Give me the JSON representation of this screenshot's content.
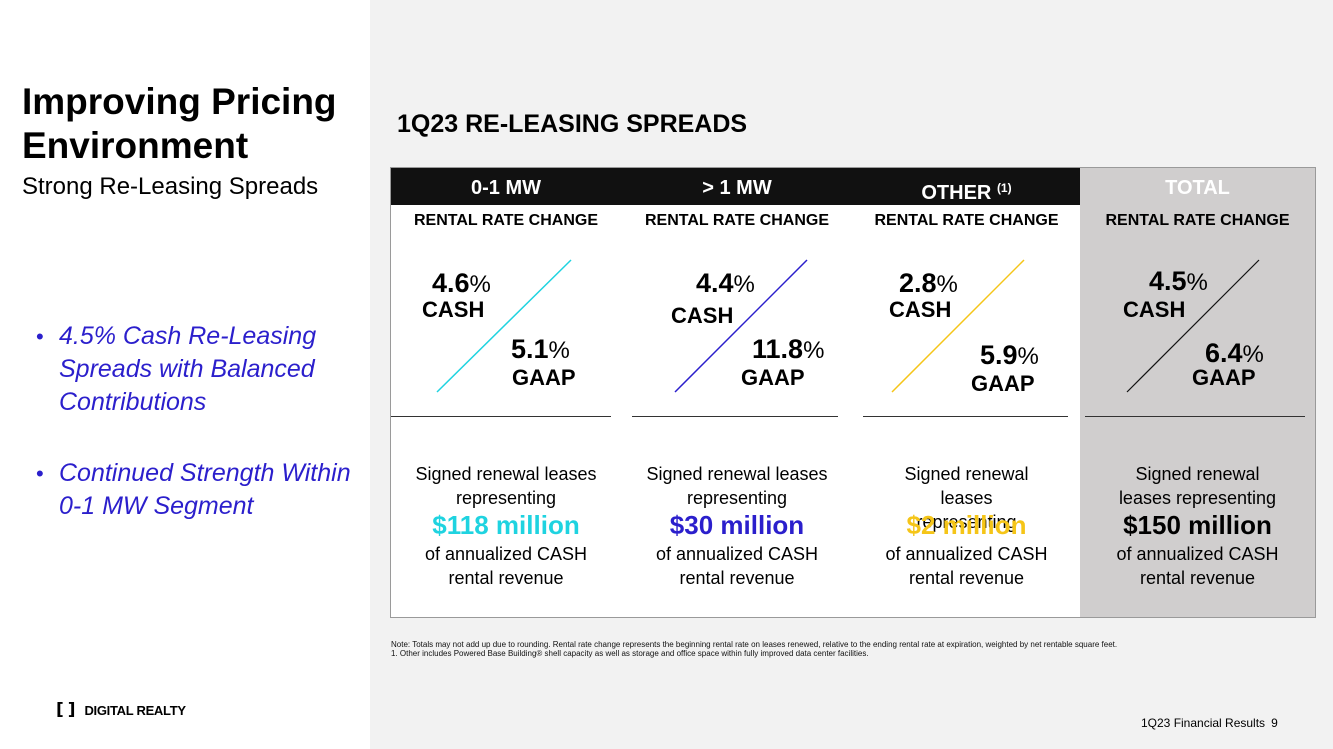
{
  "title": "Improving Pricing Environment",
  "subtitle": "Strong Re-Leasing Spreads",
  "bullets": [
    "4.5% Cash Re-Leasing Spreads with Balanced Contributions",
    "Continued Strength Within 0-1 MW Segment"
  ],
  "section_heading": "1Q23 RE-LEASING SPREADS",
  "columns": [
    {
      "header": "0-1 MW",
      "sup": "",
      "subheader": "RENTAL RATE CHANGE",
      "cash_value": "4.6",
      "gaap_value": "5.1",
      "cash_label": "CASH",
      "gaap_label": "GAAP",
      "desc_top": "Signed renewal leases representing",
      "amount": "$118 million",
      "desc_bottom": "of annualized CASH rental revenue",
      "accent": "#1fd3e0"
    },
    {
      "header": "> 1 MW",
      "sup": "",
      "subheader": "RENTAL RATE CHANGE",
      "cash_value": "4.4",
      "gaap_value": "11.8",
      "cash_label": "CASH",
      "gaap_label": "GAAP",
      "desc_top": "Signed renewal leases representing",
      "amount": "$30 million",
      "desc_bottom": "of annualized CASH rental revenue",
      "accent": "#2b1fcc"
    },
    {
      "header": "OTHER",
      "sup": "(1)",
      "subheader": "RENTAL RATE CHANGE",
      "cash_value": "2.8",
      "gaap_value": "5.9",
      "cash_label": "CASH",
      "gaap_label": "GAAP",
      "desc_top": "Signed renewal leases representing",
      "amount": "$2 million",
      "desc_bottom": "of annualized CASH rental revenue",
      "accent": "#f5c518"
    },
    {
      "header": "TOTAL",
      "sup": "",
      "subheader": "RENTAL RATE CHANGE",
      "cash_value": "4.5",
      "gaap_value": "6.4",
      "cash_label": "CASH",
      "gaap_label": "GAAP",
      "desc_top": "Signed renewal leases representing",
      "amount": "$150 million",
      "desc_bottom": "of annualized CASH rental revenue",
      "accent": "#111111"
    }
  ],
  "percent_sign": "%",
  "note": "Note:  Totals may not add up due to rounding. Rental rate change represents the beginning rental rate on leases renewed, relative to the ending rental rate at expiration, weighted by net rentable square feet.",
  "footnote": "1.     Other includes Powered Base Building® shell capacity as well as storage and office space within fully improved data center facilities.",
  "logo_text": "DIGITAL REALTY",
  "footer_text": "1Q23 Financial Results",
  "page_number": "9"
}
